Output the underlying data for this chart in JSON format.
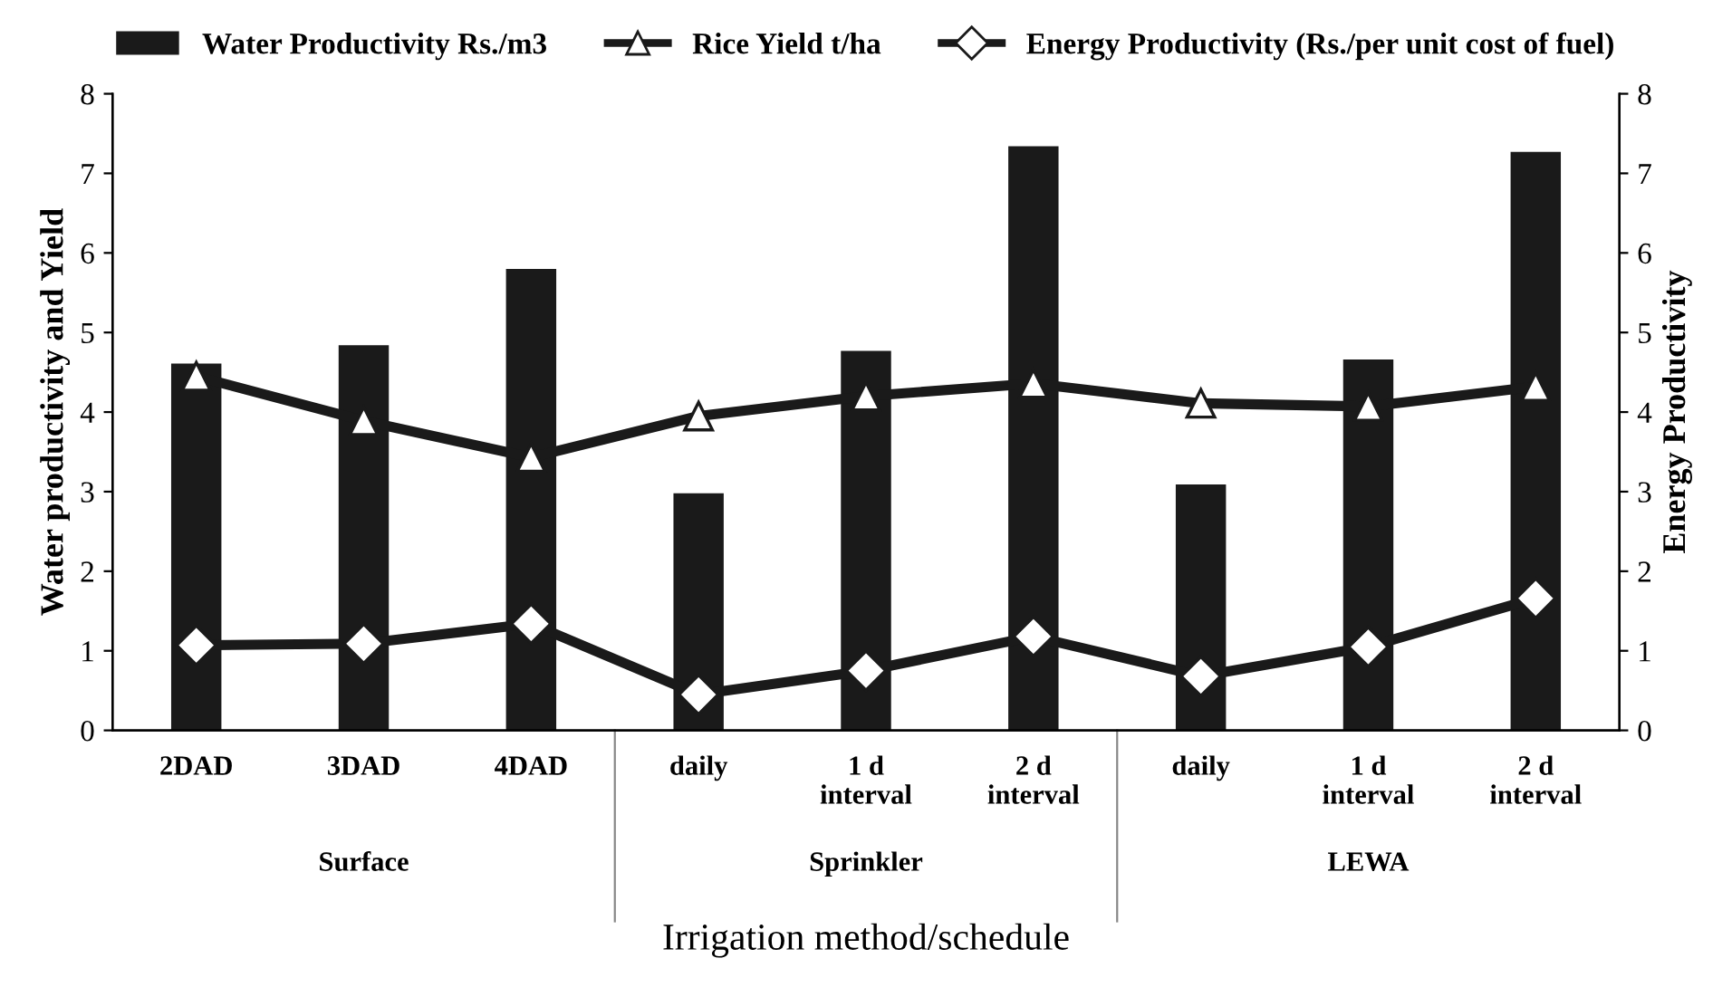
{
  "chart_data": {
    "type": "bar",
    "categories": [
      "2DAD",
      "3DAD",
      "4DAD",
      "daily",
      "1 d\ninterval",
      "2 d\ninterval",
      "daily",
      "1 d\ninterval",
      "2 d\ninterval"
    ],
    "annotations": [
      "Surface",
      "Sprinkler",
      "LEWA"
    ],
    "xlabel": "Irrigation method/schedule",
    "ylabel": "Water productivity and Yield",
    "y2label": "Energy Productivity",
    "series": [
      {
        "name": "Water Productivity Rs./m3",
        "type": "bar",
        "color": "#1a1a1a",
        "values": [
          4.61,
          4.84,
          5.8,
          2.98,
          4.77,
          7.34,
          3.09,
          4.66,
          7.27
        ]
      },
      {
        "name": "Rice Yield t/ha",
        "type": "line",
        "color": "#1a1a1a",
        "marker": "triangle",
        "values": [
          4.45,
          3.89,
          3.43,
          3.95,
          4.2,
          4.36,
          4.11,
          4.07,
          4.32
        ]
      },
      {
        "name": "Energy Productivity (Rs./per unit cost of fuel)",
        "type": "line",
        "axis": "y2",
        "color": "#1a1a1a",
        "marker": "diamond",
        "values": [
          1.07,
          1.09,
          1.34,
          0.45,
          0.75,
          1.18,
          0.68,
          1.05,
          1.66
        ]
      }
    ],
    "ylim": [
      0,
      8
    ],
    "yticks": [
      0,
      1,
      2,
      3,
      4,
      5,
      6,
      7,
      8
    ],
    "y2lim": [
      0,
      8
    ],
    "y2ticks": [
      0,
      1,
      2,
      3,
      4,
      5,
      6,
      7,
      8
    ],
    "legend": "top",
    "grid": false
  }
}
